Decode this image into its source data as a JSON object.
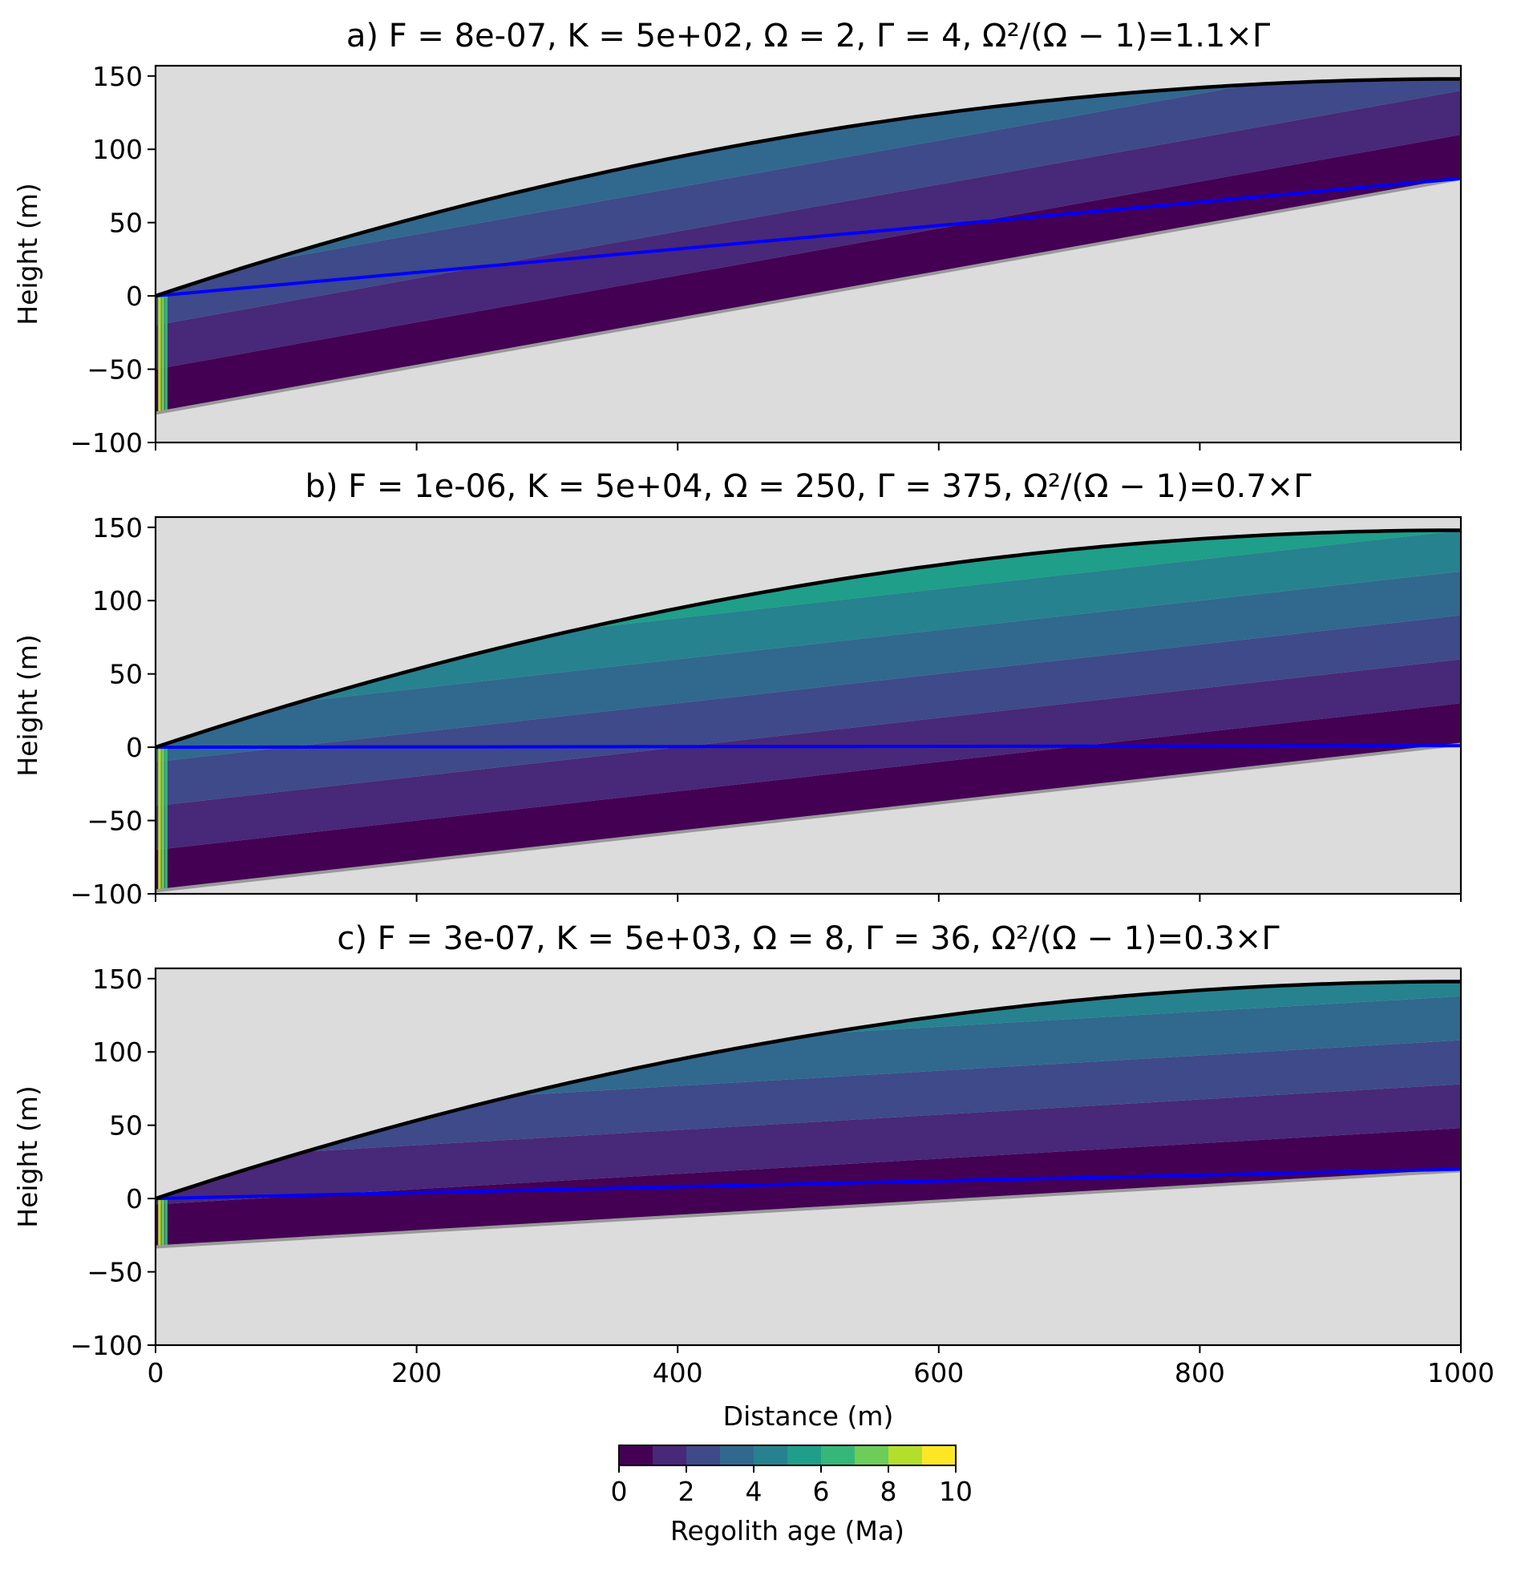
{
  "chart_data": {
    "type": "area",
    "figure": {
      "xlabel": "Distance (m)",
      "xlim": [
        0,
        1000
      ],
      "xticks": [
        "0",
        "200",
        "400",
        "600",
        "800",
        "1000"
      ],
      "xtick_values": [
        0,
        200,
        400,
        600,
        800,
        1000
      ]
    },
    "panels": [
      {
        "id": "a",
        "title": "a) F = 8e-07, K = 5e+02, Ω = 2, Γ = 4, Ω²/(Ω − 1)=1.1×Γ",
        "ylabel": "Height (m)",
        "ylim": [
          -100,
          157
        ],
        "yticks": [
          "150",
          "100",
          "50",
          "0",
          "−50",
          "−100"
        ],
        "ytick_values": [
          150,
          100,
          50,
          0,
          -50,
          -100
        ],
        "surface_max": 148,
        "base_left": -80,
        "base_right": 80,
        "water_left": 0,
        "water_right": 80,
        "band_offsets": [
          0,
          30,
          60,
          90,
          120
        ],
        "band_ages": [
          0.5,
          1.5,
          2.5,
          3.5,
          4.5
        ],
        "xticks_labeled": false
      },
      {
        "id": "b",
        "title": "b) F = 1e-06, K = 5e+04, Ω = 250, Γ = 375, Ω²/(Ω − 1)=0.7×Γ",
        "ylabel": "Height (m)",
        "ylim": [
          -100,
          157
        ],
        "yticks": [
          "150",
          "100",
          "50",
          "0",
          "−50",
          "−100"
        ],
        "ytick_values": [
          150,
          100,
          50,
          0,
          -50,
          -100
        ],
        "surface_max": 148,
        "base_left": -98,
        "base_right": 2,
        "water_left": 0,
        "water_right": 1,
        "band_offsets": [
          0,
          28,
          58,
          88,
          118,
          146,
          176
        ],
        "band_ages": [
          0.5,
          1.5,
          2.5,
          3.5,
          4.5,
          5.5,
          6.5
        ],
        "xticks_labeled": false
      },
      {
        "id": "c",
        "title": "c) F = 3e-07, K = 5e+03, Ω = 8, Γ = 36, Ω²/(Ω − 1)=0.3×Γ",
        "ylabel": "Height (m)",
        "ylim": [
          -100,
          157
        ],
        "yticks": [
          "150",
          "100",
          "50",
          "0",
          "−50",
          "−100"
        ],
        "ytick_values": [
          150,
          100,
          50,
          0,
          -50,
          -100
        ],
        "surface_max": 148,
        "base_left": -33,
        "base_right": 19,
        "water_left": 0,
        "water_right": 20,
        "band_offsets": [
          0,
          29,
          59,
          89,
          119
        ],
        "band_ages": [
          0.5,
          1.5,
          2.5,
          3.5,
          4.5
        ],
        "xticks_labeled": true
      }
    ],
    "colorbar": {
      "label": "Regolith age (Ma)",
      "range": [
        0,
        10
      ],
      "ticks": [
        "0",
        "2",
        "4",
        "6",
        "8",
        "10"
      ],
      "tick_values": [
        0,
        2,
        4,
        6,
        8,
        10
      ],
      "colors": [
        "#440154",
        "#482878",
        "#3e4a89",
        "#31688e",
        "#26828e",
        "#1f9e89",
        "#35b779",
        "#6dcd59",
        "#b4de2c",
        "#fde725"
      ]
    },
    "colors": {
      "bedrock": "#dcdcdc",
      "bedrock_line": "#999999",
      "surface_line": "#000000",
      "water_table": "#0000ff"
    }
  }
}
